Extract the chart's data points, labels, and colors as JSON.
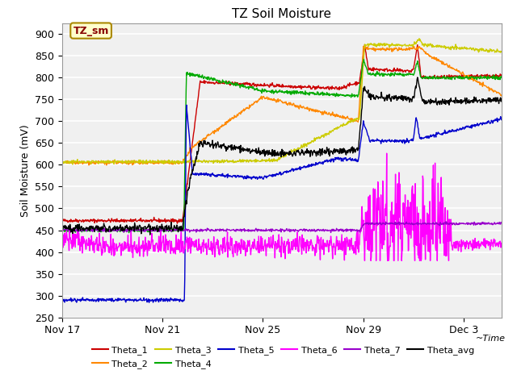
{
  "title": "TZ Soil Moisture",
  "ylabel": "Soil Moisture (mV)",
  "ylim": [
    250,
    925
  ],
  "yticks": [
    250,
    300,
    350,
    400,
    450,
    500,
    550,
    600,
    650,
    700,
    750,
    800,
    850,
    900
  ],
  "xlim": [
    0,
    17.5
  ],
  "x_tick_labels": [
    "Nov 17",
    "Nov 21",
    "Nov 25",
    "Nov 29",
    "Dec 3"
  ],
  "x_tick_positions": [
    0,
    4,
    8,
    12,
    16
  ],
  "bg_color": "#f0f0f0",
  "plot_bg": "#f0f0f0",
  "colors": {
    "Theta_1": "#cc0000",
    "Theta_2": "#ff8800",
    "Theta_3": "#cccc00",
    "Theta_4": "#00aa00",
    "Theta_5": "#0000cc",
    "Theta_6": "#ff00ff",
    "Theta_7": "#9900cc",
    "Theta_avg": "#000000"
  }
}
